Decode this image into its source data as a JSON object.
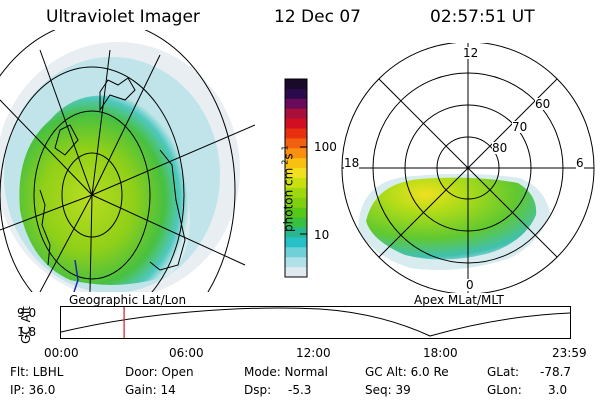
{
  "header": {
    "instrument": "Ultraviolet Imager",
    "date": "12 Dec 07",
    "time": "02:57:51 UT"
  },
  "left_map": {
    "label": "Geographic Lat/Lon"
  },
  "colorbar": {
    "label": "photon cm",
    "label_sup1": "-2",
    "label_mid": "s",
    "label_sup2": "-1",
    "ticks": [
      "100",
      "10"
    ],
    "colors": [
      "#1a0a2a",
      "#2a0a4a",
      "#6a0a5a",
      "#a8103a",
      "#d01020",
      "#e83010",
      "#f06010",
      "#f89010",
      "#f8c010",
      "#f0e020",
      "#c8e010",
      "#a0d810",
      "#80d010",
      "#58c818",
      "#38c040",
      "#28b890",
      "#28c0c8",
      "#70d0d8",
      "#b0e0e8",
      "#e0e8f0"
    ]
  },
  "right_map": {
    "label": "Apex MLat/MLT",
    "mlt_labels": [
      "12",
      "18",
      "6",
      "0"
    ],
    "mlat_labels": [
      "60",
      "70",
      "80"
    ]
  },
  "timeline": {
    "ylabel": "GC Alt",
    "ytick_top": "9.0",
    "ytick_bottom": "1.8",
    "xticks": [
      "00:00",
      "06:00",
      "12:00",
      "18:00",
      "23:59"
    ],
    "marker_hours": 2.97
  },
  "status": {
    "flt": "Flt: LBHL",
    "door": "Door: Open",
    "mode": "Mode: Normal",
    "gcalt": "GC Alt: 6.0 Re",
    "glat_label": "GLat:",
    "glat_value": "-78.7",
    "ip": "IP: 36.0",
    "gain": "Gain: 14",
    "dsp_label": "Dsp:",
    "dsp_value": "-5.3",
    "seq": "Seq: 39",
    "glon_label": "GLon:",
    "glon_value": "3.0"
  }
}
